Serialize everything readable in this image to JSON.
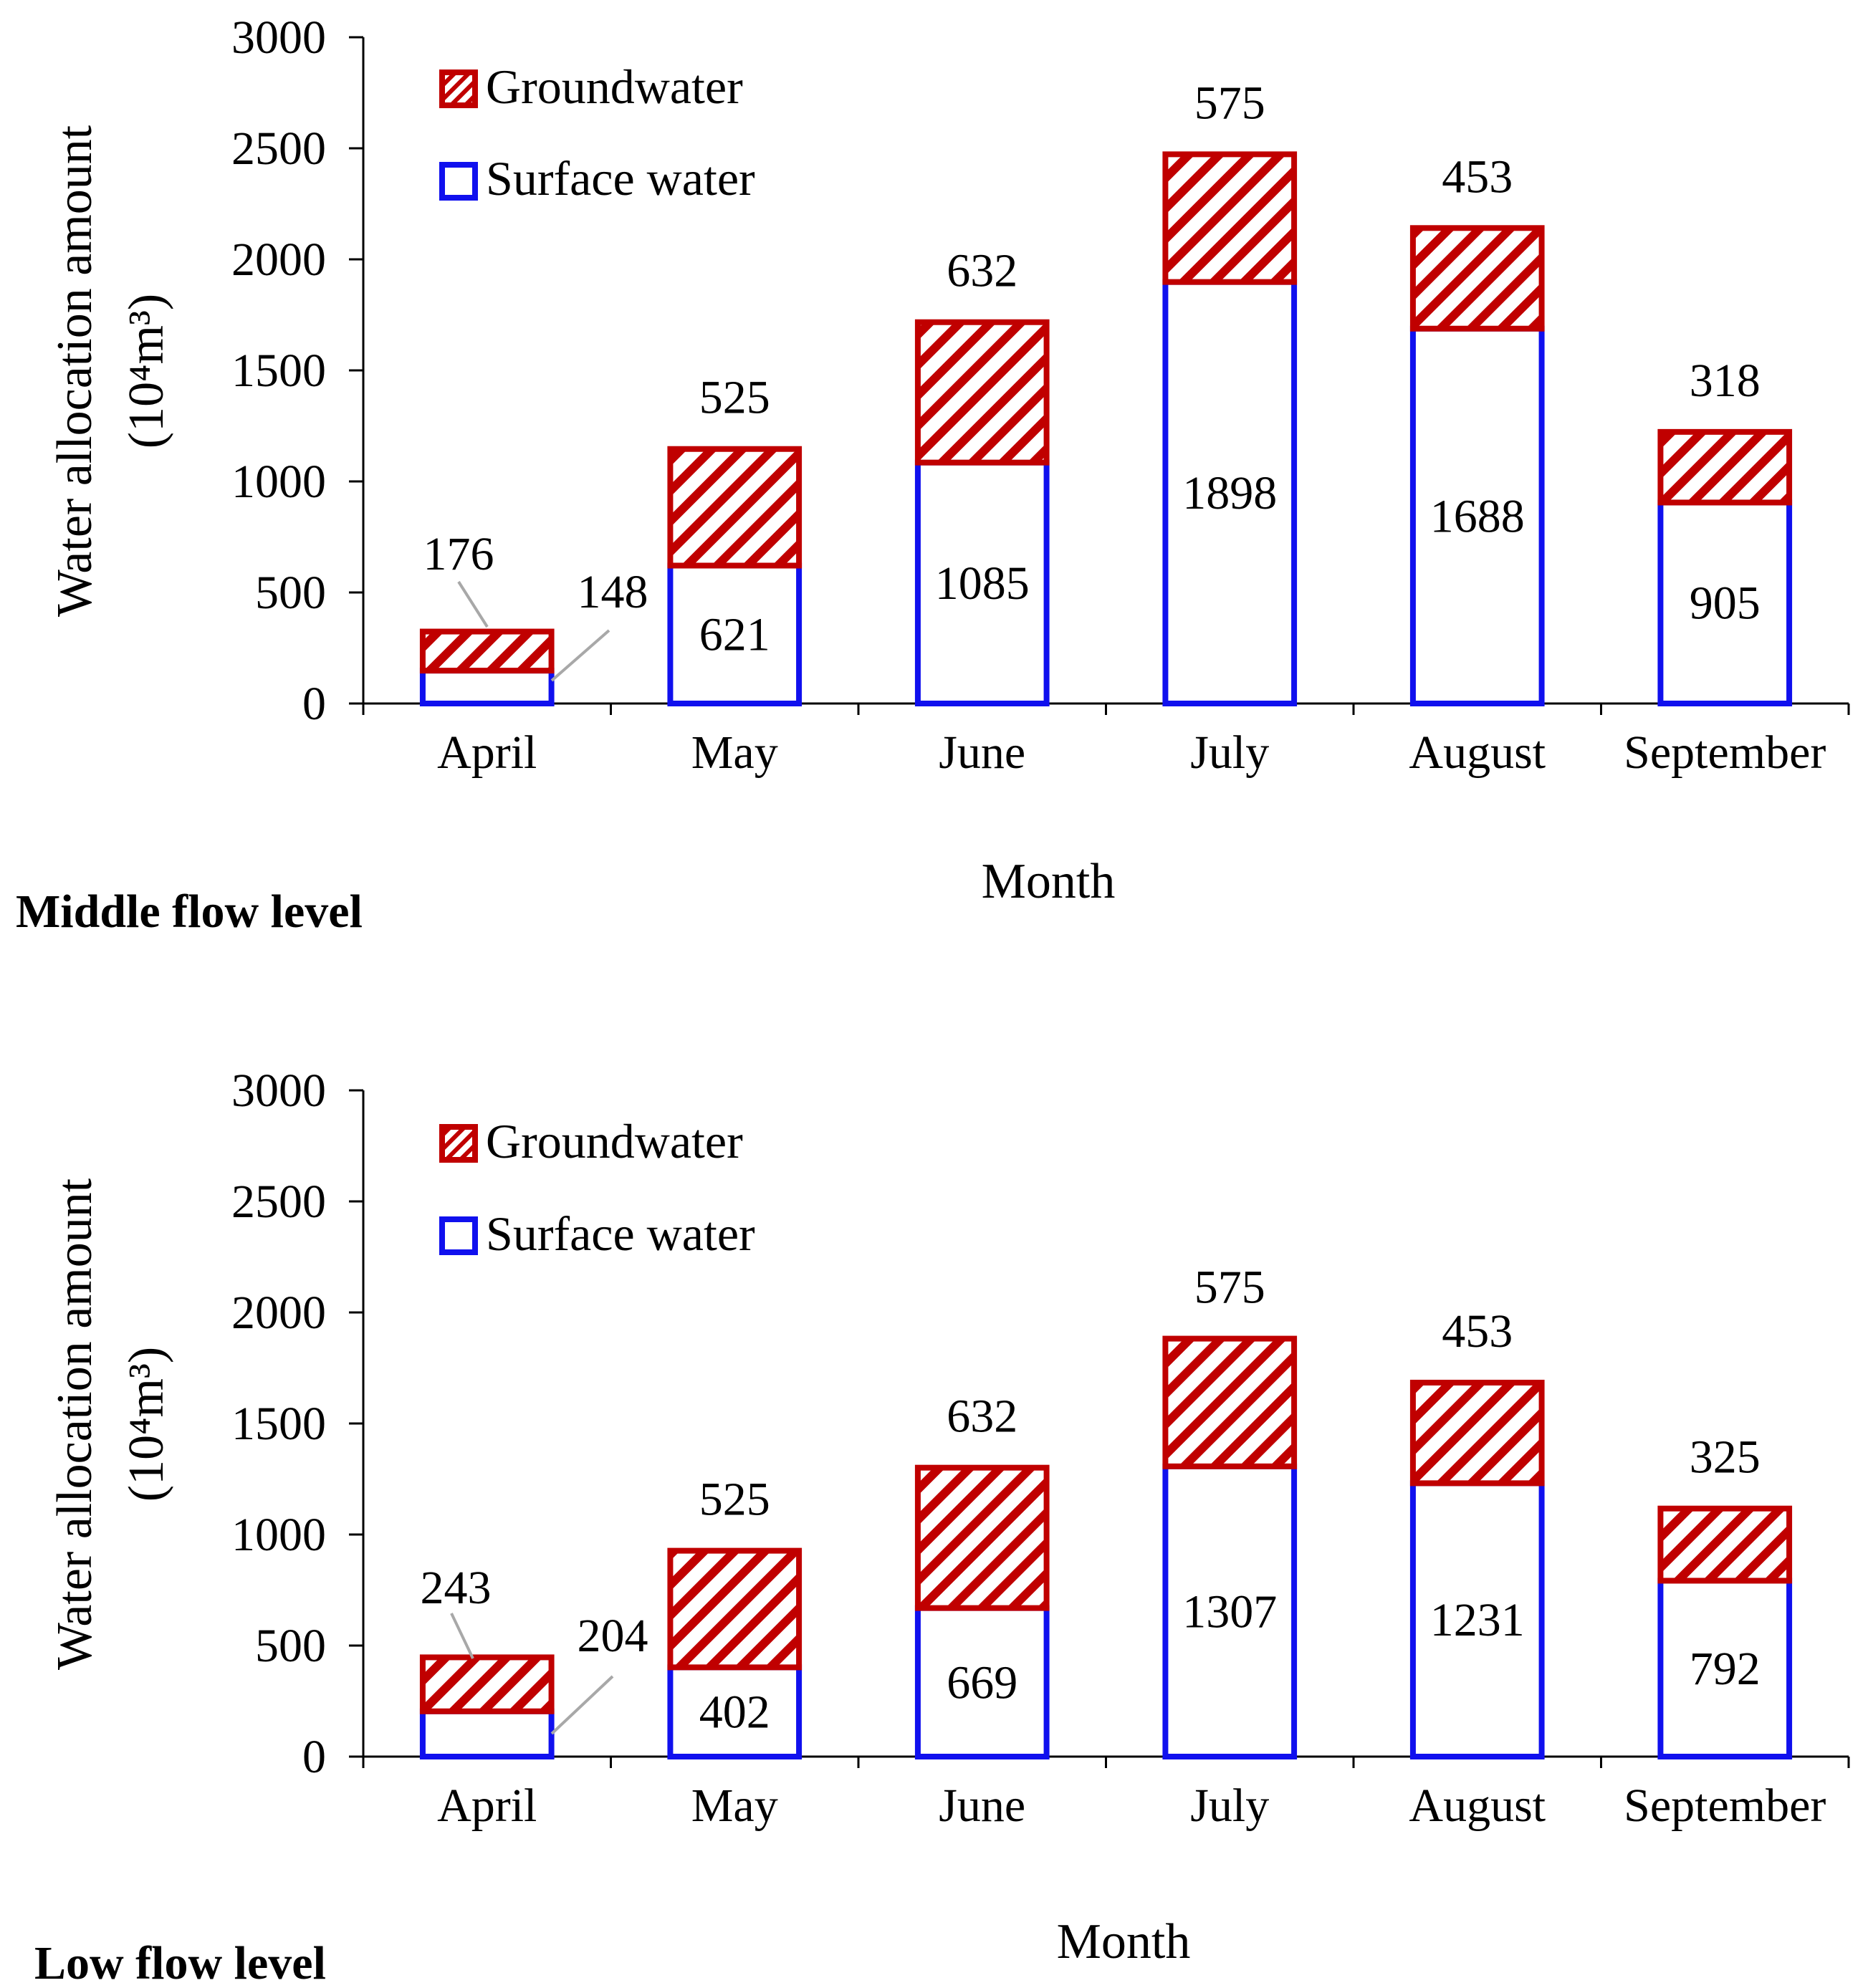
{
  "colors": {
    "surface": "#1010EE",
    "ground": "#C00000",
    "axis": "#000000",
    "leader": "#A8A8A8"
  },
  "chart_data": [
    {
      "type": "bar",
      "stacked": true,
      "caption": "Middle flow level",
      "xlabel": "Month",
      "ylabel": "Water allocation amount",
      "ylabel_unit": "(10⁴m³)",
      "ylim": [
        0,
        3000
      ],
      "yticks": [
        "0",
        "500",
        "1000",
        "1500",
        "2000",
        "2500",
        "3000"
      ],
      "categories": [
        "April",
        "May",
        "June",
        "July",
        "August",
        "September"
      ],
      "legend_position": "top-left",
      "series": [
        {
          "name": "Surface water",
          "values": [
            148,
            621,
            1085,
            1898,
            1688,
            905
          ]
        },
        {
          "name": "Groundwater",
          "values": [
            176,
            525,
            632,
            575,
            453,
            318
          ]
        }
      ]
    },
    {
      "type": "bar",
      "stacked": true,
      "caption": "Low flow level",
      "xlabel": "Month",
      "ylabel": "Water allocation amount",
      "ylabel_unit": "(10⁴m³)",
      "ylim": [
        0,
        3000
      ],
      "yticks": [
        "0",
        "500",
        "1000",
        "1500",
        "2000",
        "2500",
        "3000"
      ],
      "categories": [
        "April",
        "May",
        "June",
        "July",
        "August",
        "September"
      ],
      "legend_position": "top-left",
      "series": [
        {
          "name": "Surface water",
          "values": [
            204,
            402,
            669,
            1307,
            1231,
            792
          ]
        },
        {
          "name": "Groundwater",
          "values": [
            243,
            525,
            632,
            575,
            453,
            325
          ]
        }
      ]
    }
  ]
}
